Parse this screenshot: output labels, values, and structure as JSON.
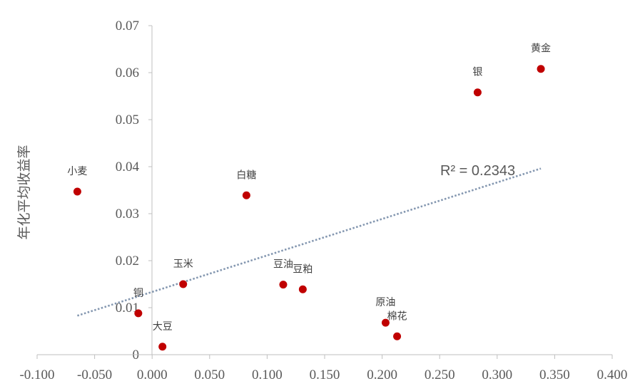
{
  "chart_data": {
    "type": "scatter",
    "ylabel": "年化平均收益率",
    "xlabel": "",
    "xlim": [
      -0.1,
      0.4
    ],
    "ylim": [
      0,
      0.07
    ],
    "x_ticks": [
      "-0.100",
      "-0.050",
      "0.000",
      "0.050",
      "0.100",
      "0.150",
      "0.200",
      "0.250",
      "0.300",
      "0.350",
      "0.400"
    ],
    "y_ticks": [
      "0",
      "0.01",
      "0.02",
      "0.03",
      "0.04",
      "0.05",
      "0.06",
      "0.07"
    ],
    "grid": false,
    "point_color": "#C00000",
    "points": [
      {
        "label": "小麦",
        "x": -0.065,
        "y": 0.0347
      },
      {
        "label": "铜",
        "x": -0.012,
        "y": 0.0088
      },
      {
        "label": "大豆",
        "x": 0.009,
        "y": 0.0017
      },
      {
        "label": "玉米",
        "x": 0.027,
        "y": 0.015
      },
      {
        "label": "白糖",
        "x": 0.082,
        "y": 0.0339
      },
      {
        "label": "豆油",
        "x": 0.114,
        "y": 0.0149
      },
      {
        "label": "豆粕",
        "x": 0.131,
        "y": 0.0139
      },
      {
        "label": "原油",
        "x": 0.203,
        "y": 0.0068
      },
      {
        "label": "棉花",
        "x": 0.213,
        "y": 0.0039
      },
      {
        "label": "银",
        "x": 0.283,
        "y": 0.0558
      },
      {
        "label": "黄金",
        "x": 0.338,
        "y": 0.0608
      }
    ],
    "trendline": {
      "type": "linear",
      "x_range": [
        -0.065,
        0.338
      ],
      "y_start": 0.0083,
      "y_end": 0.0396,
      "color": "#8497B0",
      "r2_label": "R² = 0.2343"
    }
  }
}
